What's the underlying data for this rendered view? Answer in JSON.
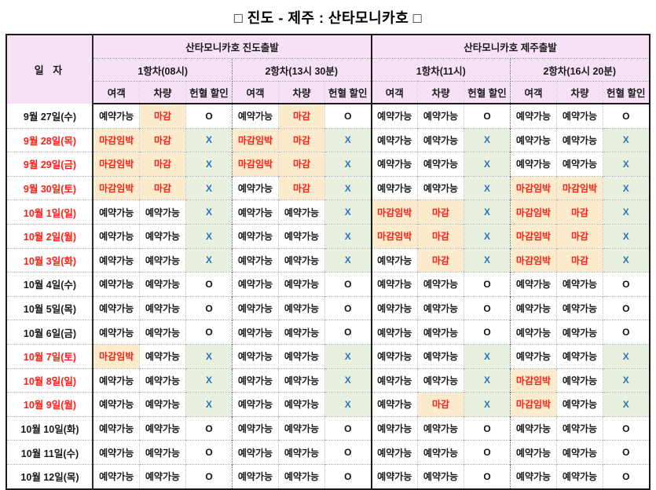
{
  "title": "□ 진도 - 제주 : 산타모니카호 □",
  "colors": {
    "header_bg": "#f7e1f6",
    "closed_bg": "#fdebcd",
    "x_bg": "#e8f1df",
    "red_text": "#ff2015",
    "blue_text": "#2b74be",
    "border": "#1a1a1a"
  },
  "header": {
    "date_label": "일 자",
    "groups": [
      {
        "label": "산타모니카호 진도출발",
        "voyages": [
          "1항차(08시)",
          "2항차(13시 30분)"
        ]
      },
      {
        "label": "산타모니카호 제주출발",
        "voyages": [
          "1항차(11시)",
          "2항차(16시 20분)"
        ]
      }
    ],
    "sub_columns": [
      "여객",
      "차량",
      "헌혈 할인"
    ]
  },
  "value_styles": {
    "예약가능": "avail",
    "마감": "closed",
    "마감임박": "imminent",
    "O": "ok",
    "X": "no"
  },
  "rows": [
    {
      "date": "9월 27일(수)",
      "date_color": "black",
      "cells": [
        "예약가능",
        "마감",
        "O",
        "예약가능",
        "마감",
        "O",
        "예약가능",
        "예약가능",
        "O",
        "예약가능",
        "예약가능",
        "O"
      ]
    },
    {
      "date": "9월 28일(목)",
      "date_color": "red",
      "cells": [
        "마감임박",
        "마감",
        "X",
        "마감임박",
        "마감",
        "X",
        "예약가능",
        "예약가능",
        "X",
        "예약가능",
        "예약가능",
        "X"
      ]
    },
    {
      "date": "9월 29일(금)",
      "date_color": "red",
      "cells": [
        "마감임박",
        "마감",
        "X",
        "마감임박",
        "마감",
        "X",
        "예약가능",
        "예약가능",
        "X",
        "예약가능",
        "예약가능",
        "X"
      ]
    },
    {
      "date": "9월 30일(토)",
      "date_color": "red",
      "cells": [
        "마감임박",
        "마감",
        "X",
        "예약가능",
        "마감",
        "X",
        "예약가능",
        "예약가능",
        "X",
        "마감임박",
        "마감임박",
        "X"
      ]
    },
    {
      "date": "10월 1일(일)",
      "date_color": "red",
      "cells": [
        "예약가능",
        "예약가능",
        "X",
        "예약가능",
        "예약가능",
        "X",
        "마감임박",
        "마감",
        "X",
        "마감임박",
        "마감",
        "X"
      ]
    },
    {
      "date": "10월 2일(월)",
      "date_color": "red",
      "cells": [
        "예약가능",
        "예약가능",
        "X",
        "예약가능",
        "예약가능",
        "X",
        "마감임박",
        "마감",
        "X",
        "마감임박",
        "마감",
        "X"
      ]
    },
    {
      "date": "10월 3일(화)",
      "date_color": "red",
      "cells": [
        "예약가능",
        "예약가능",
        "X",
        "예약가능",
        "예약가능",
        "X",
        "예약가능",
        "마감",
        "X",
        "마감임박",
        "마감",
        "X"
      ]
    },
    {
      "date": "10월 4일(수)",
      "date_color": "black",
      "cells": [
        "예약가능",
        "예약가능",
        "O",
        "예약가능",
        "예약가능",
        "O",
        "예약가능",
        "예약가능",
        "O",
        "예약가능",
        "예약가능",
        "O"
      ]
    },
    {
      "date": "10월 5일(목)",
      "date_color": "black",
      "cells": [
        "예약가능",
        "예약가능",
        "O",
        "예약가능",
        "예약가능",
        "O",
        "예약가능",
        "예약가능",
        "O",
        "예약가능",
        "예약가능",
        "O"
      ]
    },
    {
      "date": "10월 6일(금)",
      "date_color": "black",
      "cells": [
        "예약가능",
        "예약가능",
        "O",
        "예약가능",
        "예약가능",
        "O",
        "예약가능",
        "예약가능",
        "O",
        "예약가능",
        "예약가능",
        "O"
      ]
    },
    {
      "date": "10월 7일(토)",
      "date_color": "red",
      "cells": [
        "마감임박",
        "예약가능",
        "X",
        "예약가능",
        "예약가능",
        "X",
        "예약가능",
        "예약가능",
        "X",
        "예약가능",
        "예약가능",
        "X"
      ]
    },
    {
      "date": "10월 8일(일)",
      "date_color": "red",
      "cells": [
        "예약가능",
        "예약가능",
        "X",
        "예약가능",
        "예약가능",
        "X",
        "예약가능",
        "예약가능",
        "X",
        "마감임박",
        "예약가능",
        "X"
      ]
    },
    {
      "date": "10월 9일(월)",
      "date_color": "red",
      "cells": [
        "예약가능",
        "예약가능",
        "X",
        "예약가능",
        "예약가능",
        "X",
        "예약가능",
        "마감",
        "X",
        "마감임박",
        "예약가능",
        "X"
      ]
    },
    {
      "date": "10월 10일(화)",
      "date_color": "black",
      "cells": [
        "예약가능",
        "예약가능",
        "O",
        "예약가능",
        "예약가능",
        "O",
        "예약가능",
        "예약가능",
        "O",
        "예약가능",
        "예약가능",
        "O"
      ]
    },
    {
      "date": "10월 11일(수)",
      "date_color": "black",
      "cells": [
        "예약가능",
        "예약가능",
        "O",
        "예약가능",
        "예약가능",
        "O",
        "예약가능",
        "예약가능",
        "O",
        "예약가능",
        "예약가능",
        "O"
      ]
    },
    {
      "date": "10월 12일(목)",
      "date_color": "black",
      "cells": [
        "예약가능",
        "예약가능",
        "O",
        "예약가능",
        "예약가능",
        "O",
        "예약가능",
        "예약가능",
        "O",
        "예약가능",
        "예약가능",
        "O"
      ]
    }
  ]
}
